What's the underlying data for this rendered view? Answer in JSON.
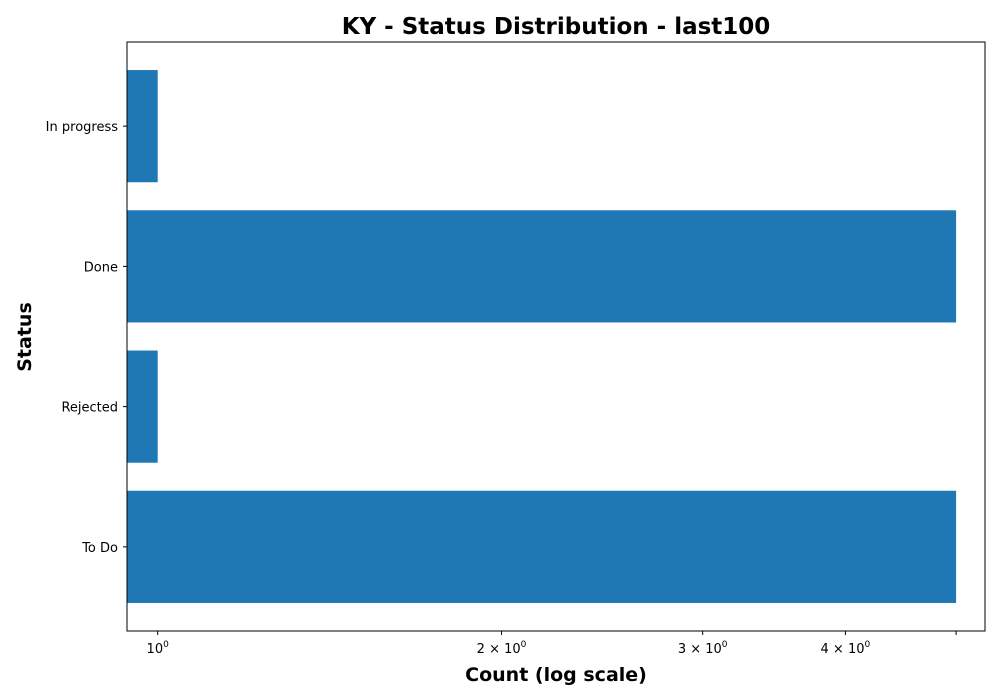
{
  "chart_data": {
    "type": "bar",
    "orientation": "horizontal",
    "title": "KY - Status Distribution - last100",
    "xlabel": "Count (log scale)",
    "ylabel": "Status",
    "x_scale": "log",
    "xlim": [
      0.94,
      5.3
    ],
    "categories": [
      "To Do",
      "Rejected",
      "Done",
      "In progress"
    ],
    "values": [
      5,
      1,
      5,
      1
    ],
    "bar_color": "#1f77b4",
    "x_ticks": [
      {
        "value": 1,
        "coef": "",
        "base": "10",
        "exp": "0"
      },
      {
        "value": 2,
        "coef": "2 × ",
        "base": "10",
        "exp": "0"
      },
      {
        "value": 3,
        "coef": "3 × ",
        "base": "10",
        "exp": "0"
      },
      {
        "value": 4,
        "coef": "4 × ",
        "base": "10",
        "exp": "0"
      },
      {
        "value": 5,
        "coef": "",
        "base": "",
        "exp": ""
      }
    ],
    "grid": false,
    "legend": "none"
  }
}
